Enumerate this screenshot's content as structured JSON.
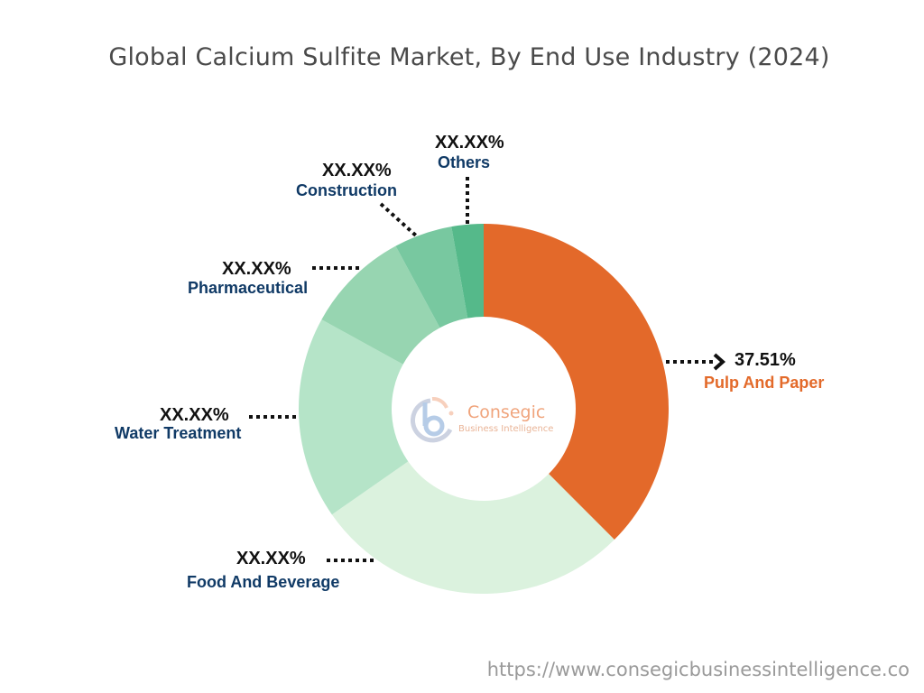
{
  "title": "Global Calcium Sulfite Market, By End Use Industry (2024)",
  "watermark": {
    "brand": "Consegic",
    "tagline": "Business Intelligence"
  },
  "source_url": "https://www.consegicbusinessintelligence.co",
  "colors": {
    "pulp_and_paper": "#e3692a",
    "food_and_beverage": "#dbf2de",
    "water_treatment": "#b5e4c8",
    "pharmaceutical": "#97d5b1",
    "construction": "#78c8a0",
    "others": "#55b98a",
    "label_dark": "#103a66",
    "label_highlight": "#e36a2a"
  },
  "labels": {
    "pulp_and_paper": {
      "value": "37.51%",
      "name": "Pulp And Paper"
    },
    "food_and_beverage": {
      "value": "XX.XX%",
      "name": "Food And Beverage"
    },
    "water_treatment": {
      "value": "XX.XX%",
      "name": "Water Treatment"
    },
    "pharmaceutical": {
      "value": "XX.XX%",
      "name": "Pharmaceutical"
    },
    "construction": {
      "value": "XX.XX%",
      "name": "Construction"
    },
    "others": {
      "value": "XX.XX%",
      "name": "Others"
    }
  },
  "chart_data": {
    "type": "pie",
    "subtype": "donut",
    "title": "Global Calcium Sulfite Market, By End Use Industry (2024)",
    "categories": [
      "Pulp And Paper",
      "Food And Beverage",
      "Water Treatment",
      "Pharmaceutical",
      "Construction",
      "Others"
    ],
    "values": [
      37.51,
      27.8,
      17.7,
      9.1,
      5.1,
      2.79
    ],
    "displayed_labels": [
      "37.51%",
      "XX.XX%",
      "XX.XX%",
      "XX.XX%",
      "XX.XX%",
      "XX.XX%"
    ],
    "colors": [
      "#e3692a",
      "#dbf2de",
      "#b5e4c8",
      "#97d5b1",
      "#78c8a0",
      "#55b98a"
    ],
    "start_angle": "top (12 o'clock), clockwise",
    "legend": "none (direct callout labels)"
  }
}
